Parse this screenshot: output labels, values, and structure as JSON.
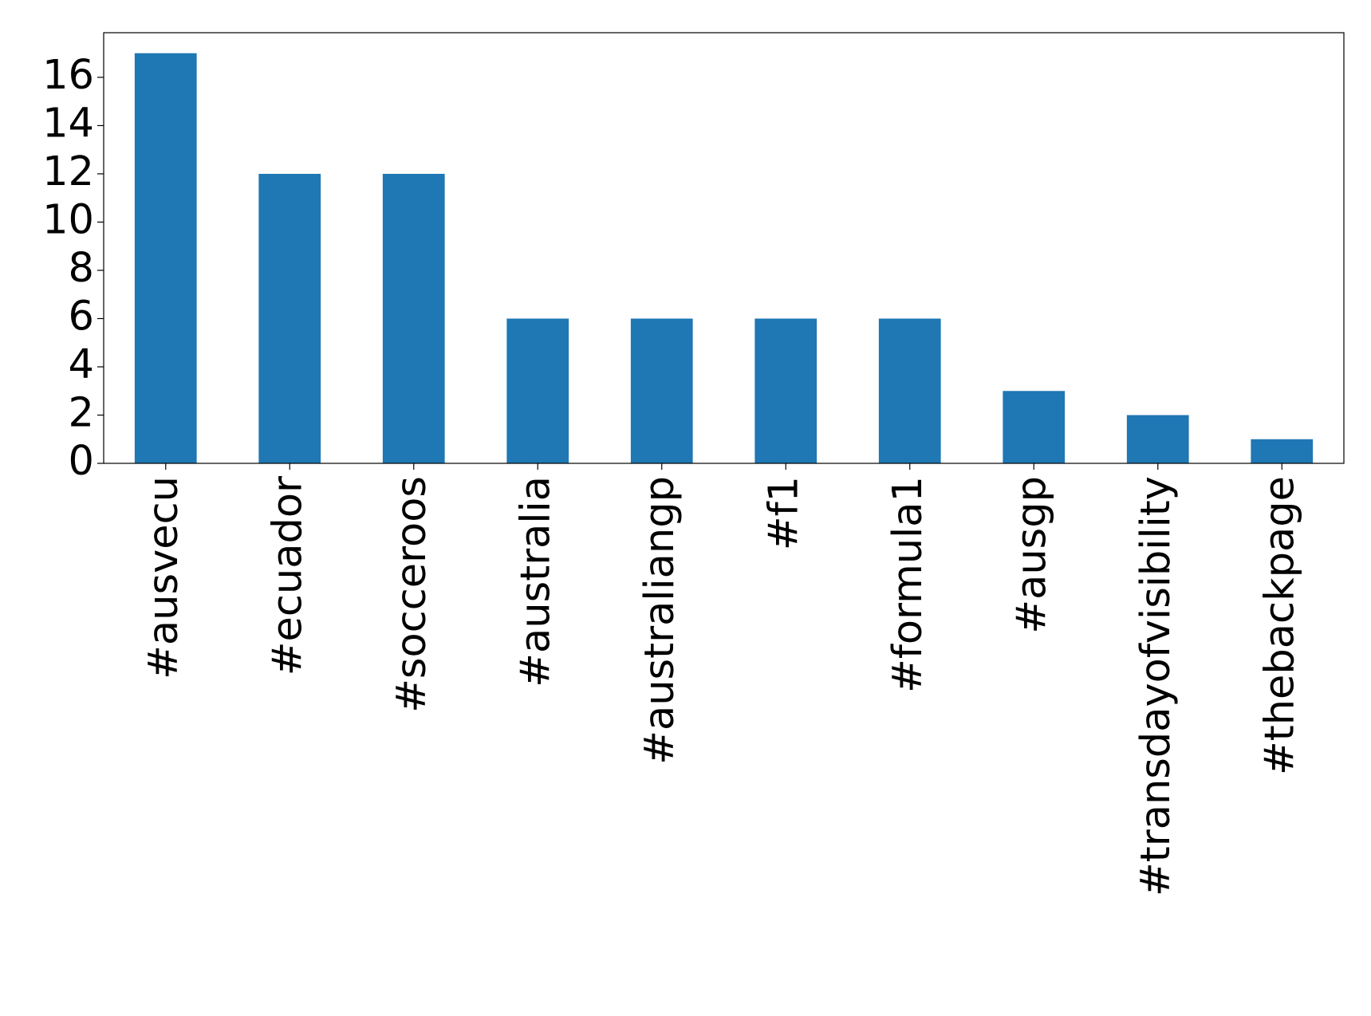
{
  "chart_data": {
    "type": "bar",
    "categories": [
      "#ausvecu",
      "#ecuador",
      "#socceroos",
      "#australia",
      "#australiangp",
      "#f1",
      "#formula1",
      "#ausgp",
      "#transdayofvisibility",
      "#thebackpage"
    ],
    "values": [
      17,
      12,
      12,
      6,
      6,
      6,
      6,
      3,
      2,
      1
    ],
    "color": "#1f77b4",
    "ylim": [
      0,
      17.85
    ],
    "yticks": [
      0,
      2,
      4,
      6,
      8,
      10,
      12,
      14,
      16
    ],
    "grid": false
  }
}
